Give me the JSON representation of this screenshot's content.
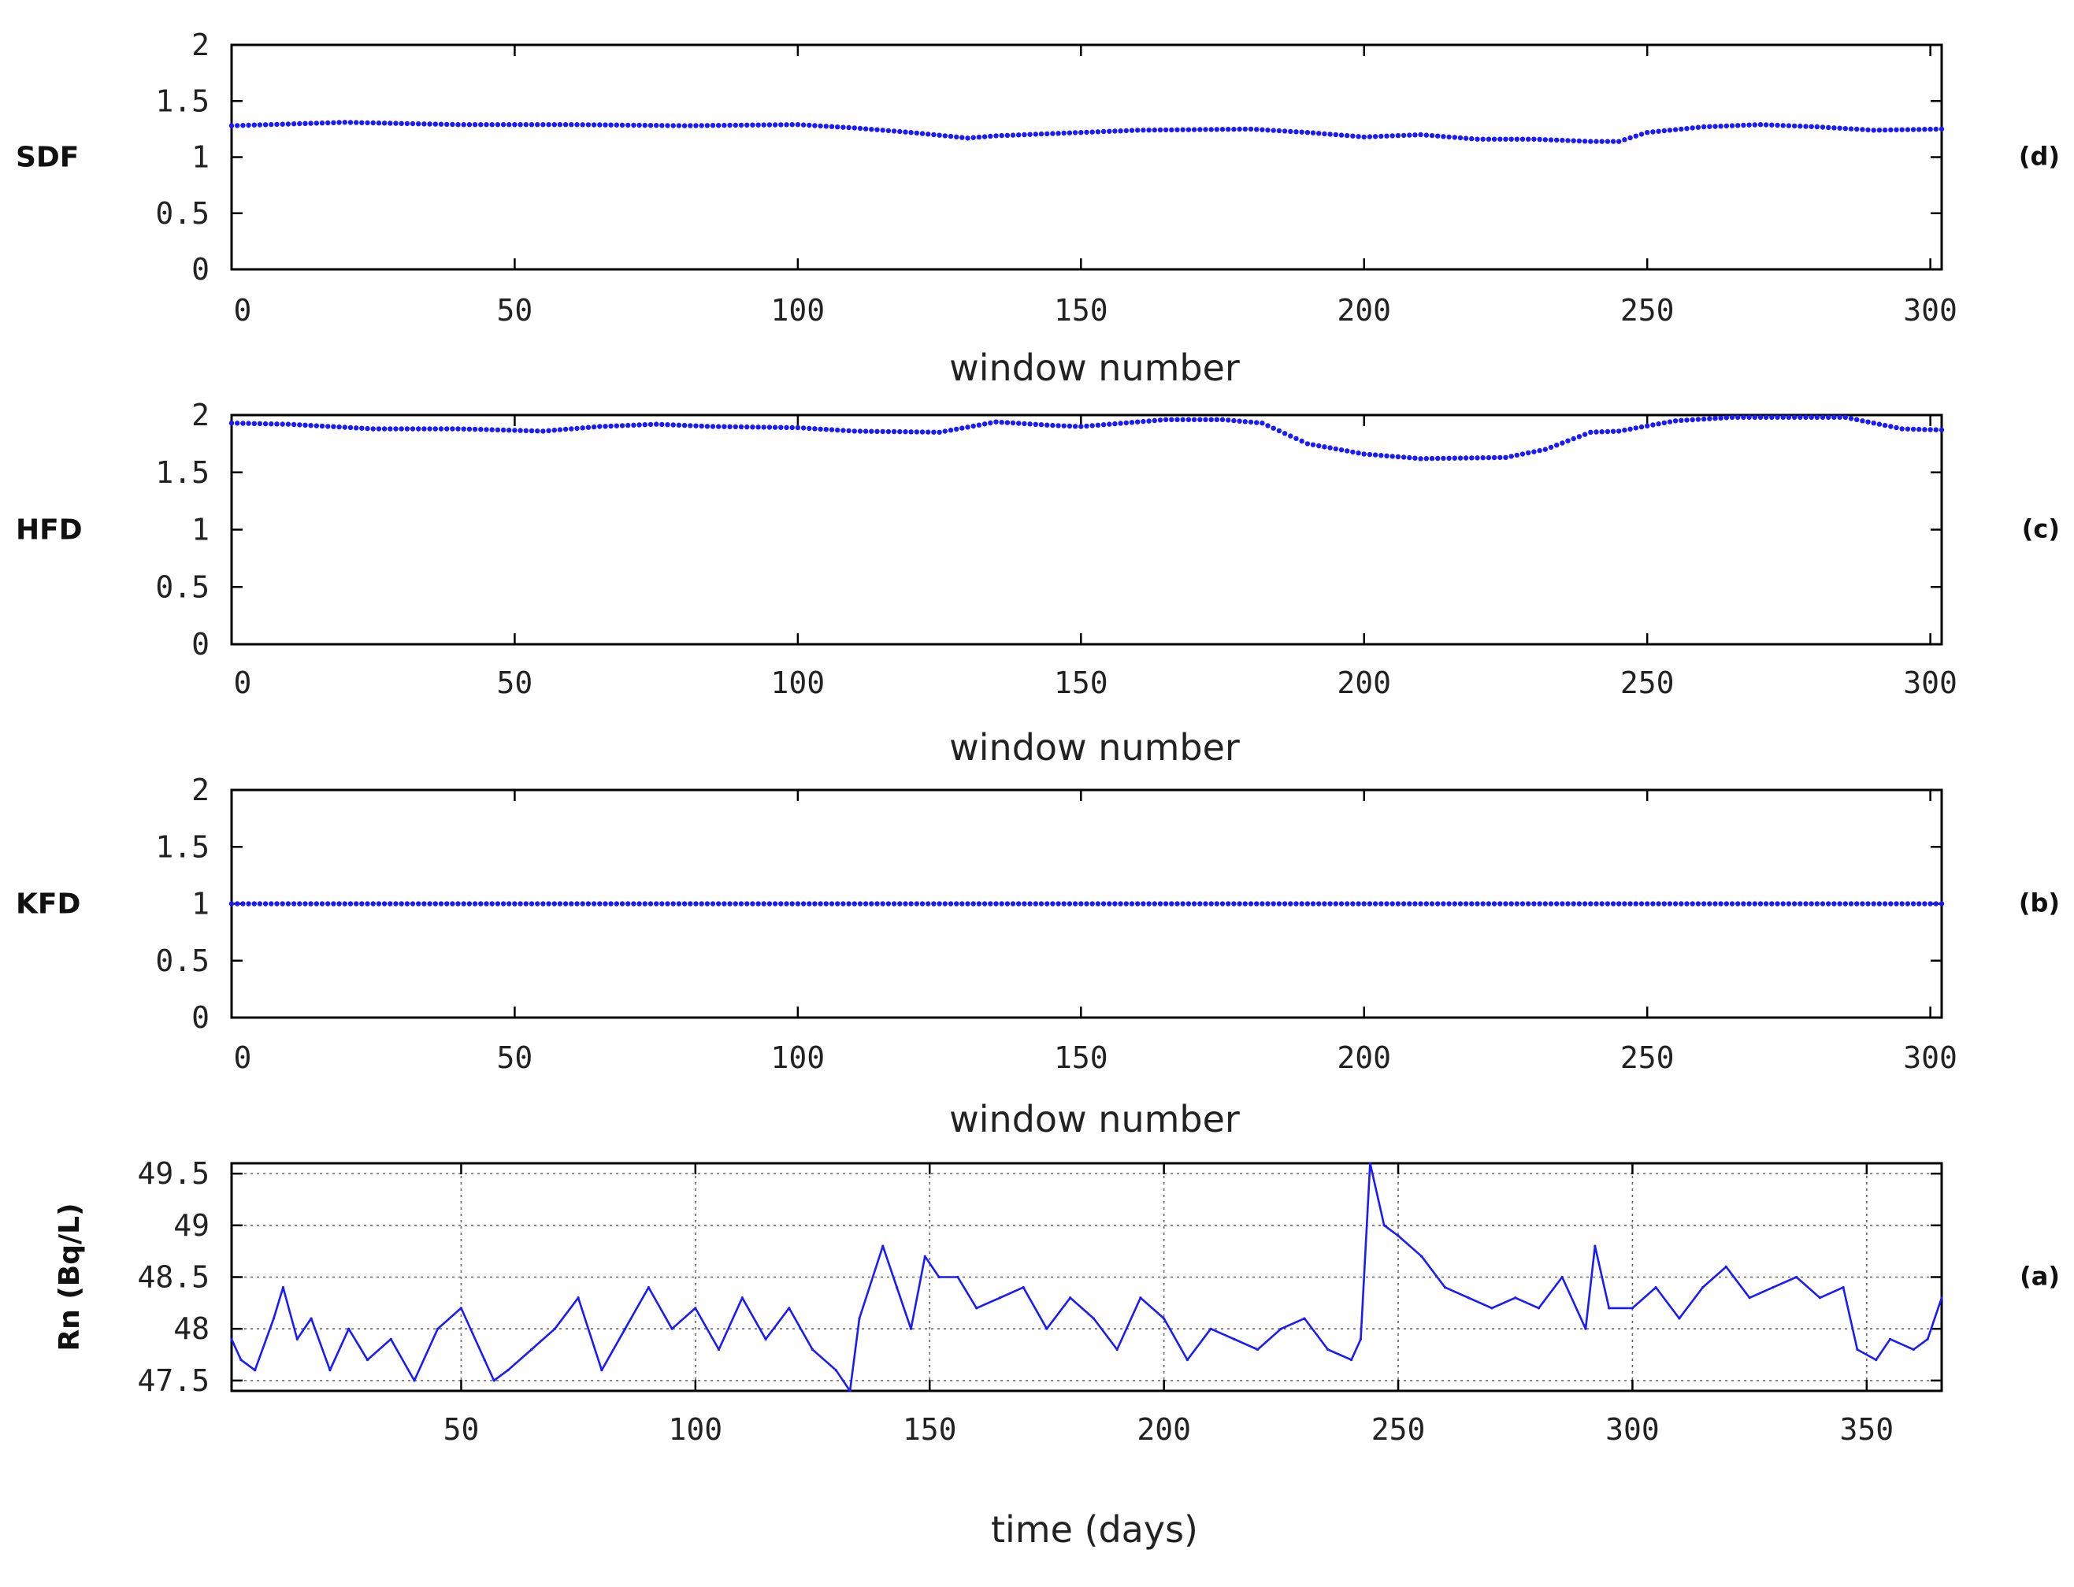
{
  "colors": {
    "series": "#1a1aff",
    "axis": "#000000",
    "text": "#222222"
  },
  "chart_data": [
    {
      "panel": "(d)",
      "type": "scatter",
      "ylabel": "SDF",
      "xlabel": "window number",
      "xlim": [
        0,
        302
      ],
      "ylim": [
        0,
        2
      ],
      "x_ticks": [
        "0",
        "50",
        "100",
        "150",
        "200",
        "250",
        "300"
      ],
      "y_ticks": [
        "0",
        "0.5",
        "1",
        "1.5",
        "2"
      ],
      "grid": false,
      "series": [
        {
          "x": [
            0,
            20,
            40,
            60,
            80,
            100,
            110,
            120,
            130,
            135,
            150,
            160,
            180,
            190,
            200,
            210,
            220,
            230,
            240,
            245,
            250,
            260,
            270,
            280,
            290,
            302
          ],
          "values": [
            1.28,
            1.31,
            1.29,
            1.29,
            1.28,
            1.29,
            1.26,
            1.22,
            1.17,
            1.19,
            1.22,
            1.24,
            1.25,
            1.22,
            1.18,
            1.2,
            1.16,
            1.16,
            1.14,
            1.14,
            1.22,
            1.27,
            1.29,
            1.27,
            1.24,
            1.25
          ]
        }
      ]
    },
    {
      "panel": "(c)",
      "type": "scatter",
      "ylabel": "HFD",
      "xlabel": "window number",
      "xlim": [
        0,
        302
      ],
      "ylim": [
        0,
        2
      ],
      "x_ticks": [
        "0",
        "50",
        "100",
        "150",
        "200",
        "250",
        "300"
      ],
      "y_ticks": [
        "0",
        "0.5",
        "1",
        "1.5",
        "2"
      ],
      "grid": false,
      "series": [
        {
          "x": [
            0,
            10,
            25,
            40,
            55,
            65,
            75,
            85,
            100,
            110,
            125,
            135,
            145,
            150,
            165,
            175,
            182,
            190,
            200,
            210,
            225,
            232,
            240,
            245,
            255,
            265,
            280,
            285,
            295,
            302
          ],
          "values": [
            1.93,
            1.92,
            1.88,
            1.88,
            1.86,
            1.9,
            1.92,
            1.9,
            1.89,
            1.86,
            1.85,
            1.94,
            1.91,
            1.9,
            1.96,
            1.96,
            1.93,
            1.75,
            1.66,
            1.62,
            1.63,
            1.7,
            1.85,
            1.86,
            1.95,
            1.98,
            1.98,
            1.98,
            1.88,
            1.87
          ]
        }
      ]
    },
    {
      "panel": "(b)",
      "type": "scatter",
      "ylabel": "KFD",
      "xlabel": "window number",
      "xlim": [
        0,
        302
      ],
      "ylim": [
        0,
        2
      ],
      "x_ticks": [
        "0",
        "50",
        "100",
        "150",
        "200",
        "250",
        "300"
      ],
      "y_ticks": [
        "0",
        "0.5",
        "1",
        "1.5",
        "2"
      ],
      "grid": false,
      "series": [
        {
          "x": [
            0,
            302
          ],
          "values": [
            1.0,
            1.0
          ]
        }
      ]
    },
    {
      "panel": "(a)",
      "type": "line",
      "ylabel": "Rn (Bq/L)",
      "xlabel": "time (days)",
      "xlim": [
        1,
        366
      ],
      "ylim": [
        47.4,
        49.6
      ],
      "x_ticks": [
        "50",
        "100",
        "150",
        "200",
        "250",
        "300",
        "350"
      ],
      "y_ticks": [
        "47.5",
        "48",
        "48.5",
        "49",
        "49.5"
      ],
      "grid": true,
      "series": [
        {
          "x": [
            1,
            3,
            6,
            10,
            12,
            15,
            18,
            22,
            26,
            30,
            35,
            40,
            45,
            50,
            55,
            57,
            60,
            65,
            70,
            75,
            80,
            85,
            90,
            95,
            100,
            105,
            110,
            115,
            120,
            125,
            130,
            133,
            135,
            140,
            143,
            146,
            149,
            152,
            156,
            160,
            165,
            170,
            175,
            180,
            185,
            190,
            195,
            200,
            205,
            210,
            215,
            220,
            225,
            230,
            235,
            240,
            242,
            244,
            247,
            250,
            255,
            260,
            265,
            270,
            275,
            280,
            285,
            290,
            292,
            295,
            300,
            305,
            310,
            315,
            320,
            325,
            330,
            335,
            340,
            345,
            348,
            352,
            355,
            360,
            363,
            366
          ],
          "values": [
            47.9,
            47.7,
            47.6,
            48.1,
            48.4,
            47.9,
            48.1,
            47.6,
            48.0,
            47.7,
            47.9,
            47.5,
            48.0,
            48.2,
            47.7,
            47.5,
            47.6,
            47.8,
            48.0,
            48.3,
            47.6,
            48.0,
            48.4,
            48.0,
            48.2,
            47.8,
            48.3,
            47.9,
            48.2,
            47.8,
            47.6,
            47.4,
            48.1,
            48.8,
            48.4,
            48.0,
            48.7,
            48.5,
            48.5,
            48.2,
            48.3,
            48.4,
            48.0,
            48.3,
            48.1,
            47.8,
            48.3,
            48.1,
            47.7,
            48.0,
            47.9,
            47.8,
            48.0,
            48.1,
            47.8,
            47.7,
            47.9,
            49.6,
            49.0,
            48.9,
            48.7,
            48.4,
            48.3,
            48.2,
            48.3,
            48.2,
            48.5,
            48.0,
            48.8,
            48.2,
            48.2,
            48.4,
            48.1,
            48.4,
            48.6,
            48.3,
            48.4,
            48.5,
            48.3,
            48.4,
            47.8,
            47.7,
            47.9,
            47.8,
            47.9,
            48.3
          ]
        }
      ]
    }
  ]
}
